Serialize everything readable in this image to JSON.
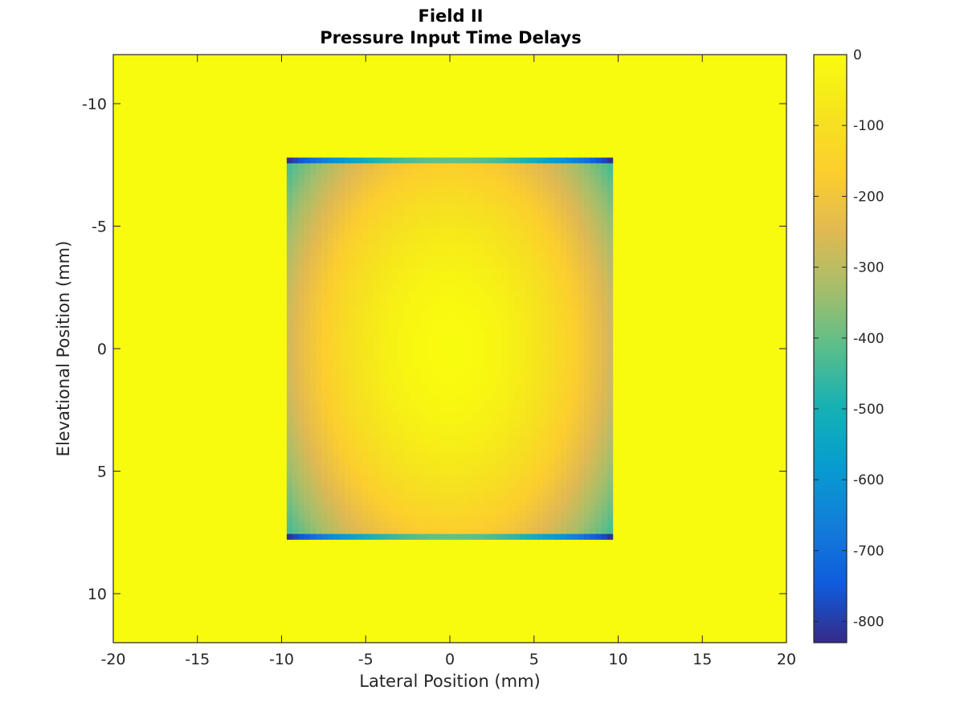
{
  "chart_data": {
    "type": "heatmap",
    "title": [
      "Field II",
      "Pressure Input Time Delays"
    ],
    "xlabel": "Lateral Position (mm)",
    "ylabel": "Elevational Position (mm)",
    "xlim": [
      -20,
      20
    ],
    "ylim": [
      -12,
      12
    ],
    "y_direction": "reverse",
    "xticks": [
      -20,
      -15,
      -10,
      -5,
      0,
      5,
      10,
      15,
      20
    ],
    "yticks": [
      -10,
      -5,
      0,
      5,
      10
    ],
    "xtick_labels": [
      "-20",
      "-15",
      "-10",
      "-5",
      "0",
      "5",
      "10",
      "15",
      "20"
    ],
    "ytick_labels": [
      "-10",
      "-5",
      "0",
      "5",
      "10"
    ],
    "background_value": 0,
    "aperture": {
      "x_range": [
        -9.7,
        9.7
      ],
      "y_range": [
        -7.8,
        7.8
      ],
      "center_value": 0,
      "corner_value": -830,
      "profile": "radially decreasing delay from center (approx. spherical focusing)"
    },
    "colorbar": {
      "colormap": "parula",
      "limits": [
        -830,
        0
      ],
      "ticks": [
        0,
        -100,
        -200,
        -300,
        -400,
        -500,
        -600,
        -700,
        -800
      ],
      "tick_labels": [
        "0",
        "-100",
        "-200",
        "-300",
        "-400",
        "-500",
        "-600",
        "-700",
        "-800"
      ],
      "location": "right"
    },
    "grid": false
  }
}
